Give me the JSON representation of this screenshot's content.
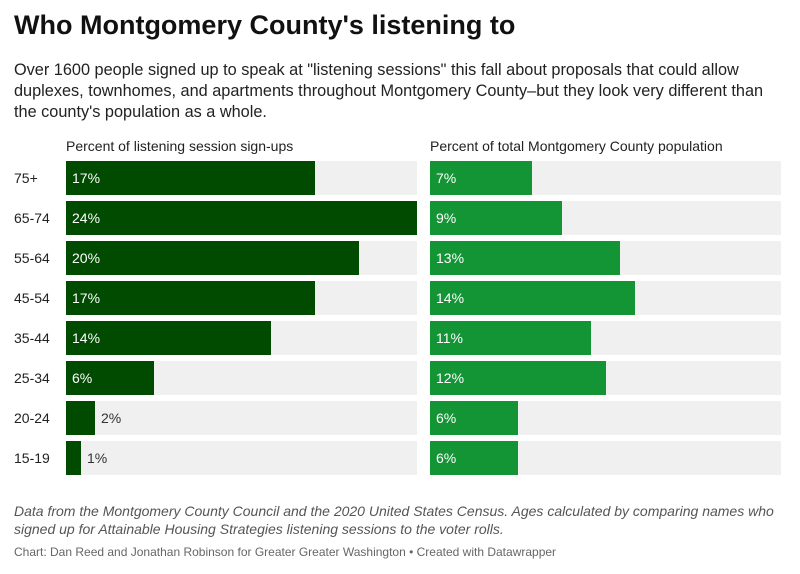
{
  "title": "Who Montgomery County's listening to",
  "subtitle": "Over 1600 people signed up to speak at \"listening sessions\" this fall about proposals that could allow duplexes, townhomes, and apartments throughout Montgomery County–but they look very different than the county's population as a whole.",
  "notes": "Data from the Montgomery County Council and the 2020 United States Census. Ages calculated by comparing names who signed up for Attainable Housing Strategies listening sessions to the voter rolls.",
  "credit": "Chart: Dan Reed and Jonathan Robinson for Greater Greater Washington • Created with Datawrapper",
  "colors": {
    "left_bar": "#004b00",
    "right_bar": "#139435",
    "track": "#f0f0f0"
  },
  "chart_data": [
    {
      "type": "bar",
      "orientation": "horizontal",
      "title": "Percent of listening session sign-ups",
      "categories": [
        "75+",
        "65-74",
        "55-64",
        "45-54",
        "35-44",
        "25-34",
        "20-24",
        "15-19"
      ],
      "values": [
        17,
        24,
        20,
        17,
        14,
        6,
        2,
        1
      ],
      "labels": [
        "17%",
        "24%",
        "20%",
        "17%",
        "14%",
        "6%",
        "2%",
        "1%"
      ],
      "xlim": [
        0,
        24
      ]
    },
    {
      "type": "bar",
      "orientation": "horizontal",
      "title": "Percent of total Montgomery County population",
      "categories": [
        "75+",
        "65-74",
        "55-64",
        "45-54",
        "35-44",
        "25-34",
        "20-24",
        "15-19"
      ],
      "values": [
        7,
        9,
        13,
        14,
        11,
        12,
        6,
        6
      ],
      "labels": [
        "7%",
        "9%",
        "13%",
        "14%",
        "11%",
        "12%",
        "6%",
        "6%"
      ],
      "xlim": [
        0,
        24
      ]
    }
  ]
}
